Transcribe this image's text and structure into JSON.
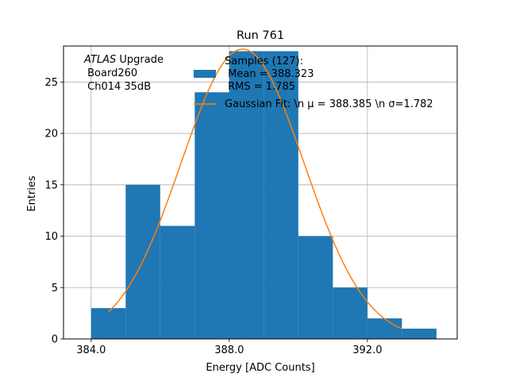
{
  "chart_data": {
    "type": "bar",
    "title": "Run 761",
    "xlabel": "Energy [ADC Counts]",
    "ylabel": "Entries",
    "xlim": [
      383.2,
      394.6
    ],
    "ylim": [
      0,
      28.5
    ],
    "x_ticks": [
      384.0,
      388.0,
      392.0
    ],
    "x_tick_labels": [
      "384.0",
      "388.0",
      "392.0"
    ],
    "y_ticks": [
      0,
      5,
      10,
      15,
      20,
      25
    ],
    "y_tick_labels": [
      "0",
      "5",
      "10",
      "15",
      "20",
      "25"
    ],
    "grid": true,
    "bin_edges": [
      384.0,
      385.0,
      386.0,
      387.0,
      388.0,
      389.0,
      390.0,
      391.0,
      392.0,
      393.0,
      394.0
    ],
    "values": [
      3,
      15,
      11,
      24,
      28,
      28,
      10,
      5,
      2,
      1
    ],
    "bar_color": "#1f77b4",
    "fit": {
      "mu": 388.385,
      "sigma": 1.782,
      "amplitude": 28.2,
      "x_range": [
        384.5,
        393.0
      ],
      "color": "#ff7f0e"
    },
    "annotation": {
      "line1_italic": "ATLAS",
      "line1_rest": " Upgrade",
      "line2": " Board260",
      "line3": " Ch014 35dB"
    },
    "legend": {
      "position": "top-right",
      "samples_line1": "Samples (127):",
      "samples_line2": " Mean = 388.323",
      "samples_line3": " RMS = 1.785",
      "fit_label": "Gaussian Fit: \\n μ = 388.385 \\n σ=1.782"
    }
  }
}
